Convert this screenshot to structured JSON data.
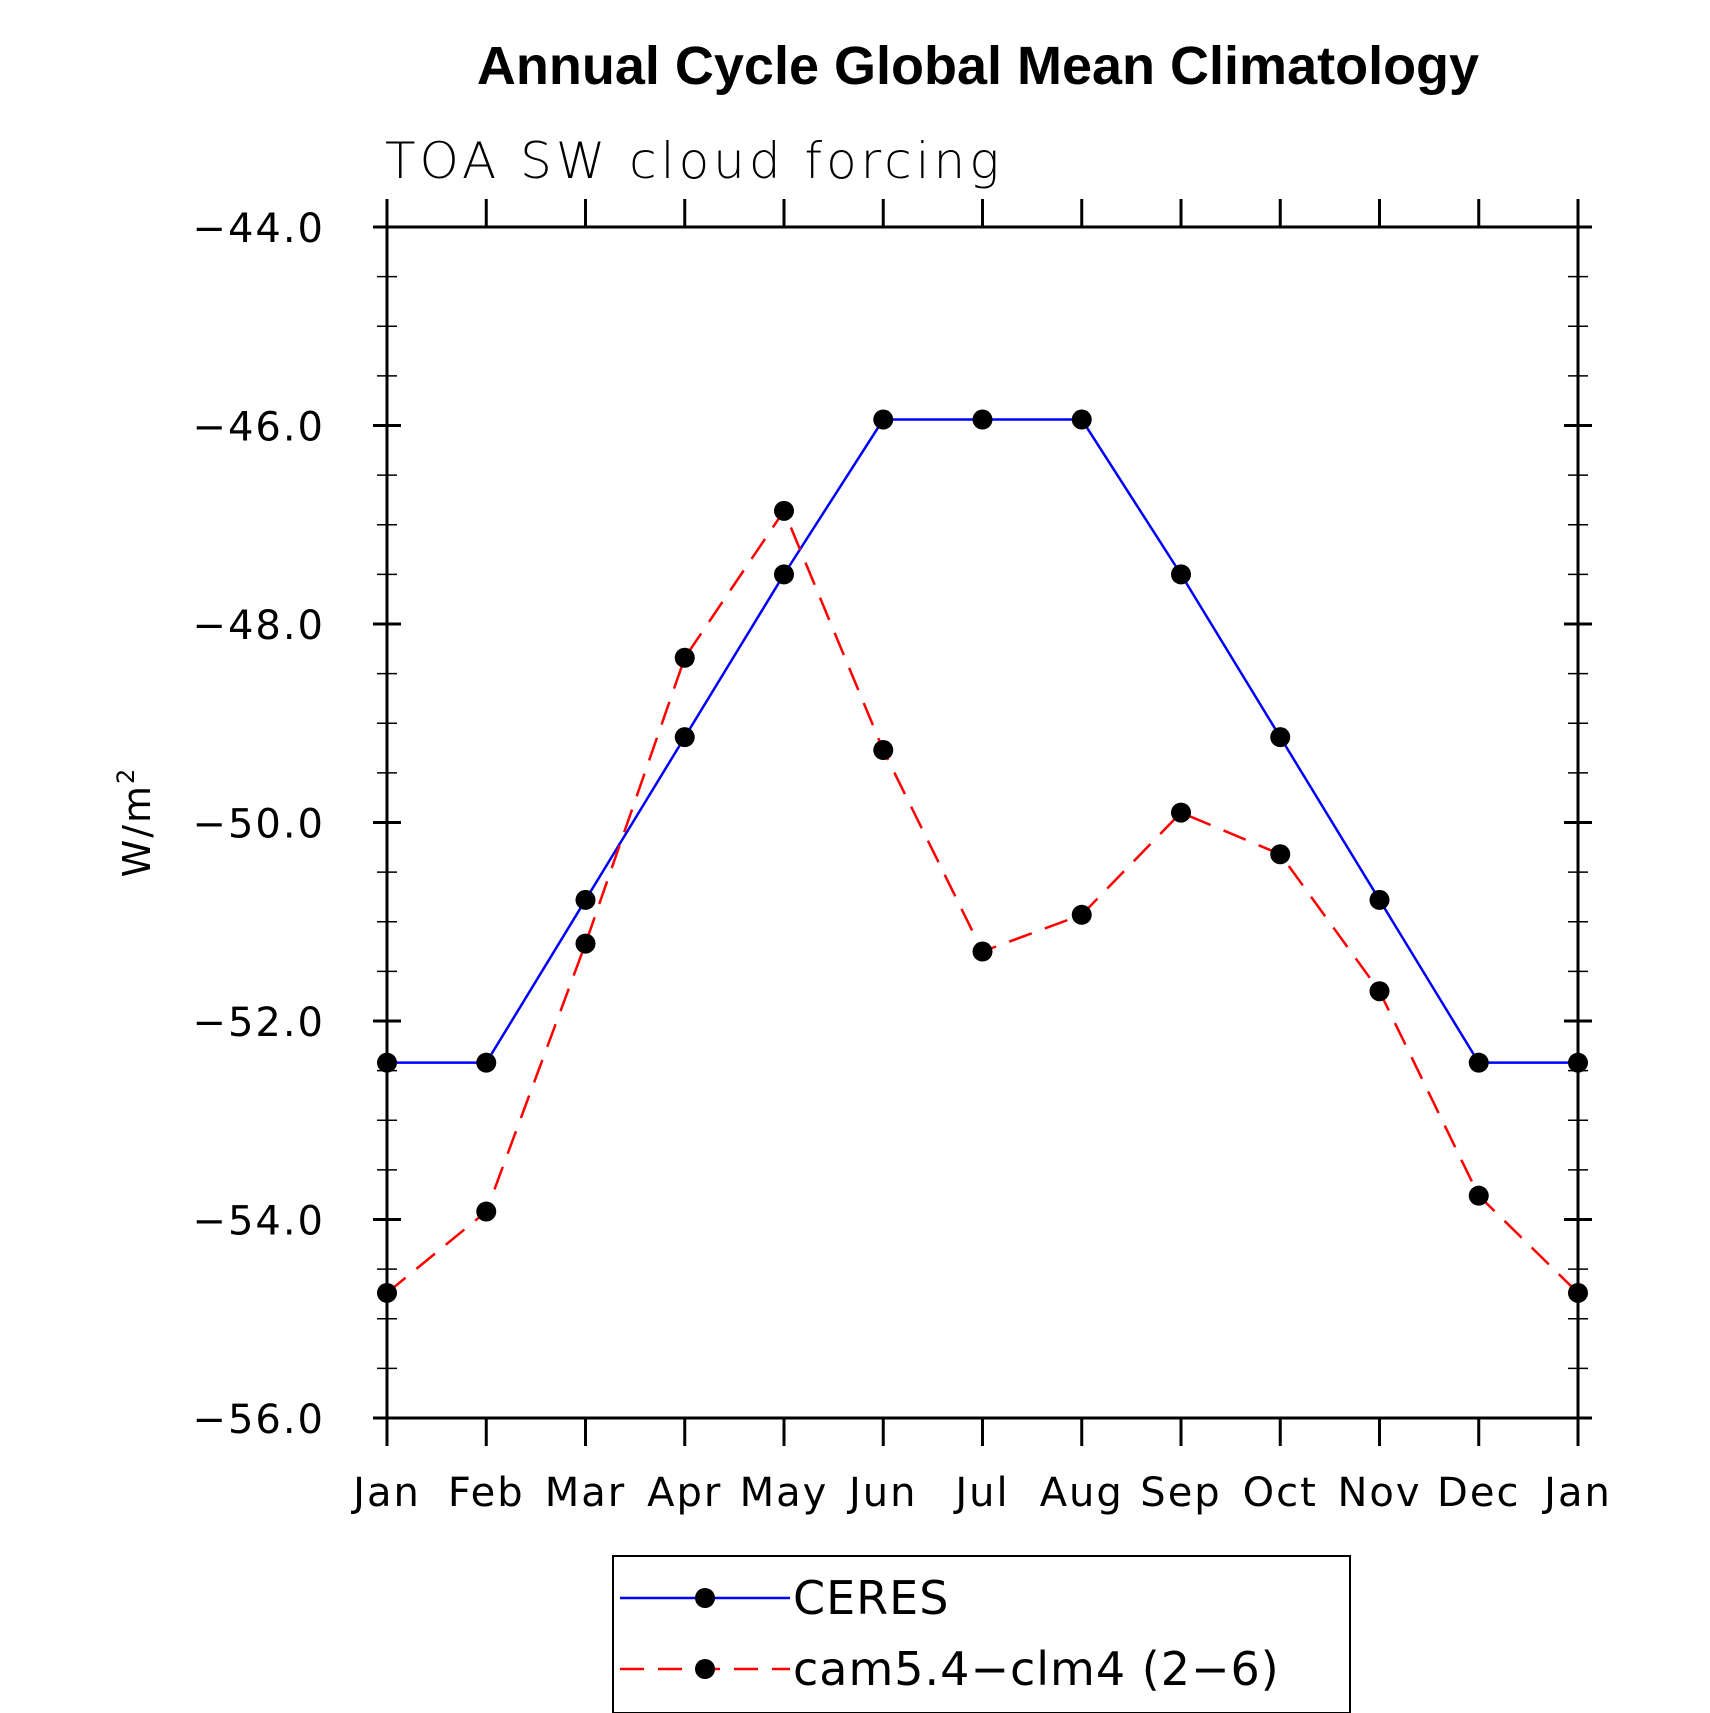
{
  "chart_data": {
    "type": "line",
    "title": "Annual Cycle Global Mean Climatology",
    "subtitle": "TOA SW cloud forcing",
    "ylabel_base": "W/m",
    "ylabel_sup": "2",
    "categories": [
      "Jan",
      "Feb",
      "Mar",
      "Apr",
      "May",
      "Jun",
      "Jul",
      "Aug",
      "Sep",
      "Oct",
      "Nov",
      "Dec",
      "Jan"
    ],
    "ylim": [
      -56.0,
      -44.0
    ],
    "yticks": [
      -56.0,
      -54.0,
      -52.0,
      -50.0,
      -48.0,
      -46.0,
      -44.0
    ],
    "ytick_labels": [
      "−56.0",
      "−54.0",
      "−52.0",
      "−50.0",
      "−48.0",
      "−46.0",
      "−44.0"
    ],
    "series": [
      {
        "name": "CERES",
        "color": "#0000ff",
        "style": "solid",
        "values": [
          -52.42,
          -52.42,
          -50.78,
          -49.14,
          -47.5,
          -45.94,
          -45.94,
          -45.94,
          -47.5,
          -49.14,
          -50.78,
          -52.42,
          -52.42
        ]
      },
      {
        "name": "cam5.4−clm4 (2−6)",
        "color": "#ff0000",
        "style": "dashed",
        "values": [
          -54.74,
          -53.92,
          -51.22,
          -48.34,
          -46.86,
          -49.27,
          -51.3,
          -50.93,
          -49.9,
          -50.32,
          -51.7,
          -53.76,
          -54.74
        ]
      }
    ],
    "marker_color": "#000000",
    "legend_position": "bottom-center",
    "grid": false
  }
}
